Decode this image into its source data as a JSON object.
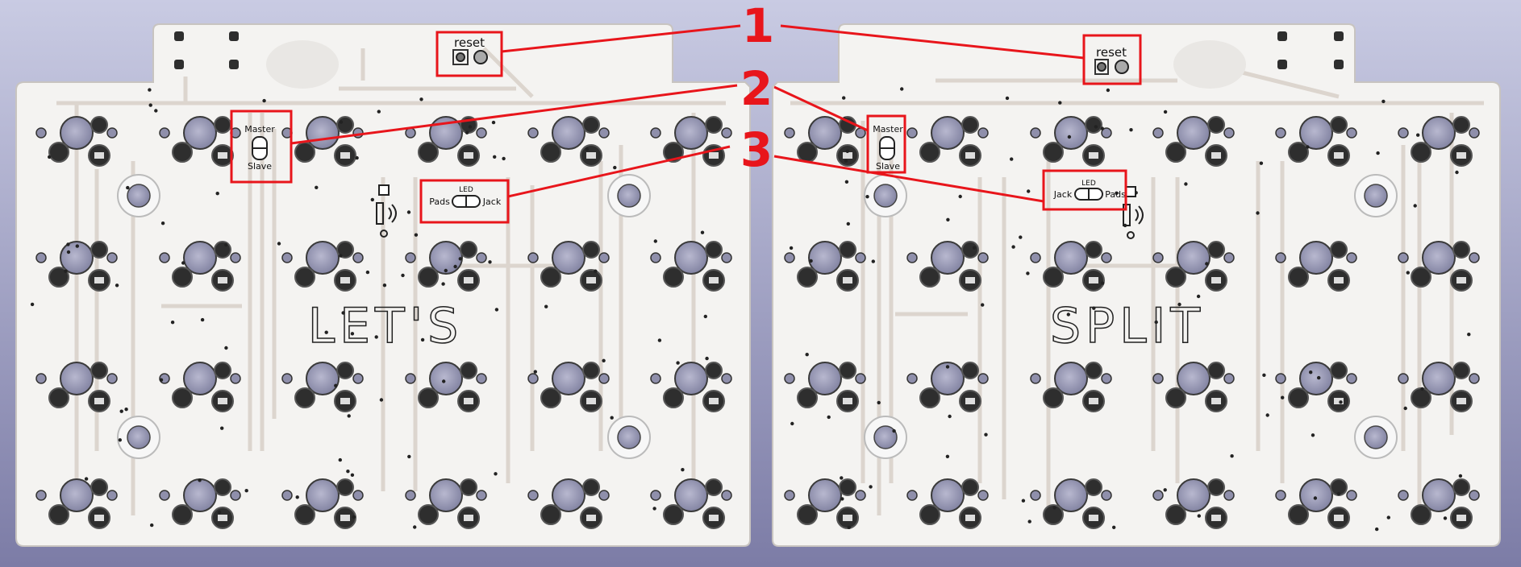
{
  "left_board": {
    "silk_text": "LET'S",
    "reset_label": "reset",
    "master_label": "Master",
    "slave_label": "Slave",
    "led_label": "LED",
    "pads_label": "Pads",
    "jack_label": "Jack"
  },
  "right_board": {
    "silk_text": "SPLIT",
    "reset_label": "reset",
    "master_label": "Master",
    "slave_label": "Slave",
    "led_label": "LED",
    "pads_label": "Pads",
    "jack_label": "Jack"
  },
  "callouts": {
    "n1": "1",
    "n2": "2",
    "n3": "3",
    "color": "#e8151b"
  },
  "colors": {
    "background_top": "#c9cbe3",
    "background_bottom": "#7c7ca6",
    "board": "#f4f3f1",
    "trace": "#d9d2cc",
    "hole": "#9c9cb8"
  }
}
